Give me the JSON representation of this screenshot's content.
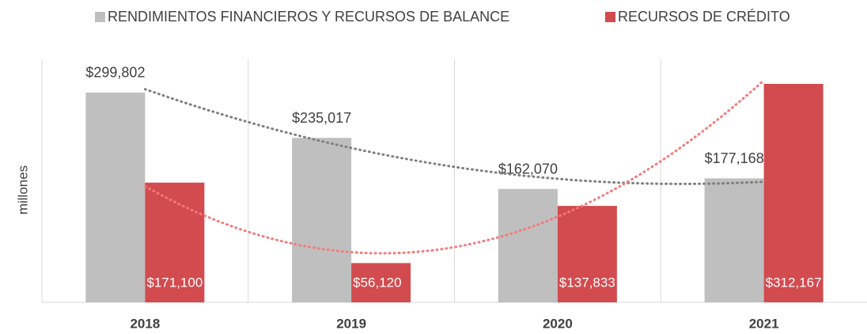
{
  "chart_data": {
    "type": "bar",
    "y_axis_label": "millones",
    "categories": [
      "2018",
      "2019",
      "2020",
      "2021"
    ],
    "series": [
      {
        "name": "RENDIMIENTOS FINANCIEROS Y RECURSOS DE BALANCE",
        "color": "#bfbfbf",
        "trend_color": "#7f7f7f",
        "values": [
          299802,
          235017,
          162070,
          177168
        ],
        "value_labels": [
          "$299,802",
          "$235,017",
          "$162,070",
          "$177,168"
        ]
      },
      {
        "name": "RECURSOS DE CRÉDITO",
        "color": "#d24b4f",
        "trend_color": "#f47a7a",
        "values": [
          171100,
          56120,
          137833,
          312167
        ],
        "value_labels": [
          "$171,100",
          "$56,120",
          "$137,833",
          "$312,167"
        ]
      }
    ],
    "trendline": "polynomial",
    "legend": "top"
  }
}
